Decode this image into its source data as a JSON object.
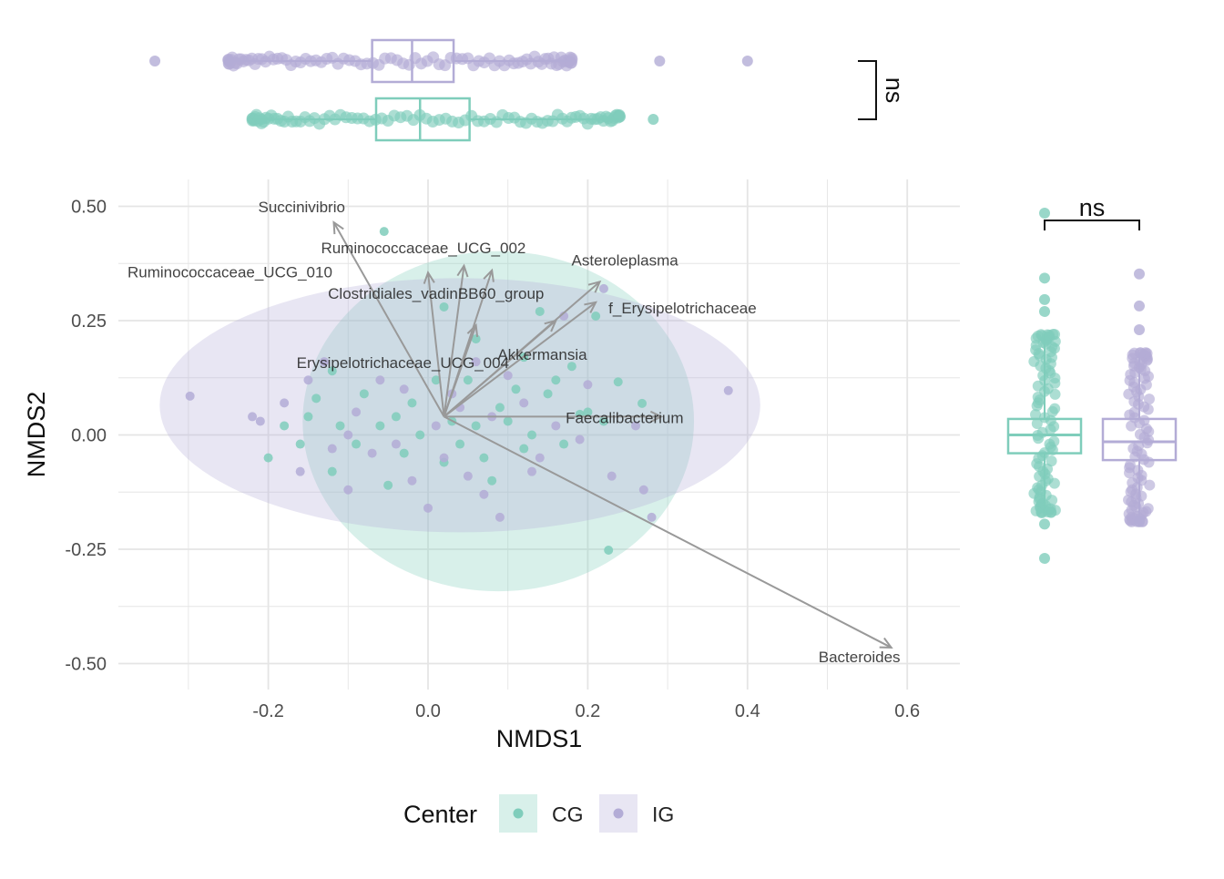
{
  "colors": {
    "CG": "#7fcdbb",
    "IG": "#b3acd6",
    "arrow": "#999999",
    "grid": "#e5e5e5",
    "text": "#333333"
  },
  "chart_data": {
    "type": "scatter",
    "xlabel": "NMDS1",
    "ylabel": "NMDS2",
    "xlim": [
      -0.39,
      0.66
    ],
    "ylim": [
      -0.56,
      0.52
    ],
    "x_ticks": [
      -0.2,
      0.0,
      0.2,
      0.4,
      0.6
    ],
    "x_tick_labels": [
      "-0.2",
      "0.0",
      "0.2",
      "0.4",
      "0.6"
    ],
    "y_ticks": [
      0.5,
      0.25,
      0.0,
      -0.25,
      -0.5
    ],
    "y_tick_labels": [
      "0.50",
      "0.25",
      "0.00",
      "-0.25",
      "-0.50"
    ],
    "grid": true,
    "legend": {
      "title": "Center",
      "position": "bottom",
      "entries": [
        "CG",
        "IG"
      ]
    },
    "ellipses": [
      {
        "group": "CG",
        "center": [
          0.088,
          0.03
        ],
        "radii": [
          0.245,
          0.372
        ]
      },
      {
        "group": "IG",
        "center": [
          0.04,
          0.065
        ],
        "radii": [
          0.376,
          0.278
        ]
      }
    ],
    "series": [
      {
        "name": "CG",
        "points": [
          [
            -0.055,
            0.445
          ],
          [
            0.226,
            -0.252
          ],
          [
            0.14,
            0.27
          ],
          [
            0.238,
            0.116
          ],
          [
            0.268,
            0.069
          ],
          [
            0.21,
            0.26
          ],
          [
            0.19,
            0.045
          ],
          [
            0.1,
            0.03
          ],
          [
            0.12,
            0.17
          ],
          [
            0.06,
            0.21
          ],
          [
            0.02,
            0.28
          ],
          [
            -0.12,
            0.14
          ],
          [
            -0.14,
            0.08
          ],
          [
            -0.18,
            0.02
          ],
          [
            -0.2,
            -0.05
          ],
          [
            -0.12,
            -0.08
          ],
          [
            -0.05,
            -0.11
          ],
          [
            0.02,
            -0.06
          ],
          [
            0.08,
            -0.1
          ],
          [
            0.12,
            -0.03
          ],
          [
            0.17,
            -0.02
          ],
          [
            0.2,
            0.05
          ],
          [
            0.15,
            0.09
          ],
          [
            0.05,
            0.12
          ],
          [
            -0.02,
            0.07
          ],
          [
            -0.06,
            0.02
          ],
          [
            -0.09,
            -0.02
          ],
          [
            0.03,
            0.03
          ],
          [
            0.09,
            0.06
          ],
          [
            -0.03,
            -0.04
          ],
          [
            0.01,
            0.12
          ],
          [
            -0.15,
            0.04
          ],
          [
            0.13,
            0.0
          ],
          [
            0.04,
            -0.02
          ],
          [
            -0.08,
            0.09
          ],
          [
            0.06,
            0.02
          ],
          [
            -0.01,
            0.0
          ],
          [
            0.11,
            0.1
          ],
          [
            0.16,
            0.12
          ],
          [
            -0.04,
            0.04
          ],
          [
            0.07,
            -0.05
          ],
          [
            -0.11,
            0.02
          ],
          [
            0.22,
            0.03
          ],
          [
            0.18,
            0.15
          ],
          [
            -0.16,
            -0.02
          ]
        ]
      },
      {
        "name": "IG",
        "points": [
          [
            -0.298,
            0.085
          ],
          [
            0.376,
            0.097
          ],
          [
            0.22,
            0.32
          ],
          [
            0.17,
            0.26
          ],
          [
            0.27,
            -0.12
          ],
          [
            0.28,
            -0.18
          ],
          [
            0.23,
            -0.09
          ],
          [
            0.09,
            -0.18
          ],
          [
            0.0,
            -0.16
          ],
          [
            -0.1,
            -0.12
          ],
          [
            -0.16,
            -0.08
          ],
          [
            -0.22,
            0.04
          ],
          [
            -0.21,
            0.03
          ],
          [
            -0.13,
            0.16
          ],
          [
            -0.06,
            0.12
          ],
          [
            0.03,
            0.09
          ],
          [
            0.08,
            0.04
          ],
          [
            0.14,
            -0.05
          ],
          [
            0.19,
            -0.01
          ],
          [
            -0.04,
            -0.02
          ],
          [
            0.01,
            0.02
          ],
          [
            -0.09,
            0.05
          ],
          [
            0.05,
            -0.09
          ],
          [
            0.12,
            0.07
          ],
          [
            -0.02,
            -0.1
          ],
          [
            -0.07,
            -0.04
          ],
          [
            0.1,
            0.13
          ],
          [
            0.2,
            0.11
          ],
          [
            -0.12,
            -0.03
          ],
          [
            0.04,
            0.06
          ],
          [
            -0.15,
            0.12
          ],
          [
            0.07,
            -0.13
          ],
          [
            0.16,
            0.02
          ],
          [
            -0.03,
            0.1
          ],
          [
            0.13,
            -0.08
          ],
          [
            -0.18,
            0.07
          ],
          [
            0.02,
            -0.05
          ],
          [
            0.26,
            0.02
          ],
          [
            -0.1,
            0.0
          ],
          [
            0.06,
            0.16
          ]
        ]
      }
    ],
    "arrows": [
      {
        "label": "Bacteroides",
        "x": 0.58,
        "y": -0.465
      },
      {
        "label": "Faecalibacterium",
        "x": 0.292,
        "y": 0.04
      },
      {
        "label": "Succinivibrio",
        "x": -0.118,
        "y": 0.465
      },
      {
        "label": "Ruminococcaceae_UCG_002",
        "x": 0.045,
        "y": 0.37
      },
      {
        "label": "Ruminococcaceae_UCG_010",
        "x": 0.0,
        "y": 0.355
      },
      {
        "label": "Clostridiales_vadinBB60_group",
        "x": 0.08,
        "y": 0.36
      },
      {
        "label": "Asteroleplasma",
        "x": 0.215,
        "y": 0.335
      },
      {
        "label": "f_Erysipelotrichaceae",
        "x": 0.21,
        "y": 0.29
      },
      {
        "label": "Akkermansia",
        "x": 0.16,
        "y": 0.25
      },
      {
        "label": "Erysipelotrichaceae_UCG_004",
        "x": 0.06,
        "y": 0.24
      }
    ],
    "arrow_origin": [
      0.02,
      0.04
    ],
    "top_panel": {
      "significance": "ns",
      "boxes": [
        {
          "group": "IG",
          "q1": -0.07,
          "median": -0.02,
          "q3": 0.032,
          "min": -0.25,
          "max": 0.18
        },
        {
          "group": "CG",
          "q1": -0.065,
          "median": -0.01,
          "q3": 0.052,
          "min": -0.22,
          "max": 0.24
        }
      ],
      "outliers": {
        "IG": [
          -0.342,
          -0.25,
          0.29,
          0.4
        ],
        "CG": [
          -0.208,
          0.282
        ]
      }
    },
    "right_panel": {
      "significance": "ns",
      "boxes": [
        {
          "group": "CG",
          "q1": -0.04,
          "median": 0.0,
          "q3": 0.035,
          "min": -0.17,
          "max": 0.22
        },
        {
          "group": "IG",
          "q1": -0.055,
          "median": -0.015,
          "q3": 0.035,
          "min": -0.19,
          "max": 0.18
        }
      ],
      "outliers": {
        "CG": [
          0.485,
          0.343,
          0.296,
          0.27,
          -0.195,
          -0.27
        ],
        "IG": [
          0.352,
          0.282,
          0.23,
          -0.19
        ]
      }
    }
  }
}
